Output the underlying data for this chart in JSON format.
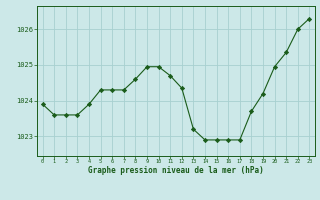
{
  "x": [
    0,
    1,
    2,
    3,
    4,
    5,
    6,
    7,
    8,
    9,
    10,
    11,
    12,
    13,
    14,
    15,
    16,
    17,
    18,
    19,
    20,
    21,
    22,
    23
  ],
  "y": [
    1023.9,
    1023.6,
    1023.6,
    1023.6,
    1023.9,
    1024.3,
    1024.3,
    1024.3,
    1024.6,
    1024.95,
    1024.95,
    1024.7,
    1024.35,
    1023.2,
    1022.9,
    1022.9,
    1022.9,
    1022.9,
    1023.7,
    1024.2,
    1024.95,
    1025.35,
    1026.0,
    1026.3
  ],
  "line_color": "#1a5c1a",
  "marker": "D",
  "marker_size": 2.2,
  "bg_color": "#cce8e8",
  "grid_color": "#a8d0d0",
  "xlabel": "Graphe pression niveau de la mer (hPa)",
  "xlabel_color": "#1a5c1a",
  "tick_color": "#1a5c1a",
  "ylabel_ticks": [
    1023,
    1024,
    1025,
    1026
  ],
  "xlim": [
    -0.5,
    23.5
  ],
  "ylim": [
    1022.45,
    1026.65
  ],
  "fig_width": 3.2,
  "fig_height": 2.0,
  "dpi": 100
}
